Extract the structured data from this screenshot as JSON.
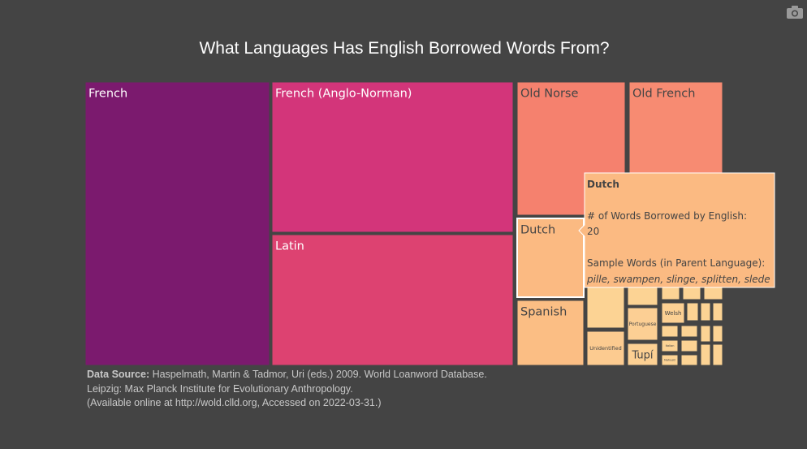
{
  "chart_data": {
    "type": "treemap",
    "title": "What Languages Has English Borrowed Words From?",
    "value_label": "# of Words Borrowed by English:",
    "sample_label": "Sample Words (in Parent Language):",
    "labeled_tiles": [
      {
        "name": "French",
        "value": 480,
        "color": "#7b1a6e"
      },
      {
        "name": "French (Anglo-Norman)",
        "value": 330,
        "color": "#d3357a"
      },
      {
        "name": "Latin",
        "value": 310,
        "color": "#dd4271"
      },
      {
        "name": "Old Norse",
        "value": 60,
        "color": "#f5816e"
      },
      {
        "name": "Old French",
        "value": 40,
        "color": "#f78b72"
      },
      {
        "name": "Dutch",
        "value": 20,
        "color": "#fbba82"
      },
      {
        "name": "Spanish",
        "value": 20,
        "color": "#fbbe84"
      },
      {
        "name": "Portuguese",
        "value": 5,
        "color": "#fccf94"
      },
      {
        "name": "Welsh",
        "value": 4,
        "color": "#fcd093"
      },
      {
        "name": "Unidentified",
        "value": 6,
        "color": "#fccb90"
      },
      {
        "name": "Tupí",
        "value": 4,
        "color": "#fcd093"
      },
      {
        "name": "Italian",
        "value": 3,
        "color": "#fcd394"
      },
      {
        "name": "Nahuatl",
        "value": 2,
        "color": "#fcd395"
      }
    ],
    "unlabeled_tile_count": 16,
    "hover": {
      "name": "Dutch",
      "value": "20",
      "samples": "pille, swampen, slinge, splitten, slede"
    }
  },
  "source": {
    "label": "Data Source:",
    "line1": " Haspelmath, Martin & Tadmor, Uri (eds.) 2009. World Loanword Database.",
    "line2": "Leipzig: Max Planck Institute for Evolutionary Anthropology.",
    "line3": "(Available online at http://wold.clld.org, Accessed on 2022-03-31.)"
  },
  "toolbar": {
    "icon": "camera-icon"
  },
  "colors": {
    "background": "#444444",
    "border": "#444444",
    "tooltip": "#fbba82"
  }
}
